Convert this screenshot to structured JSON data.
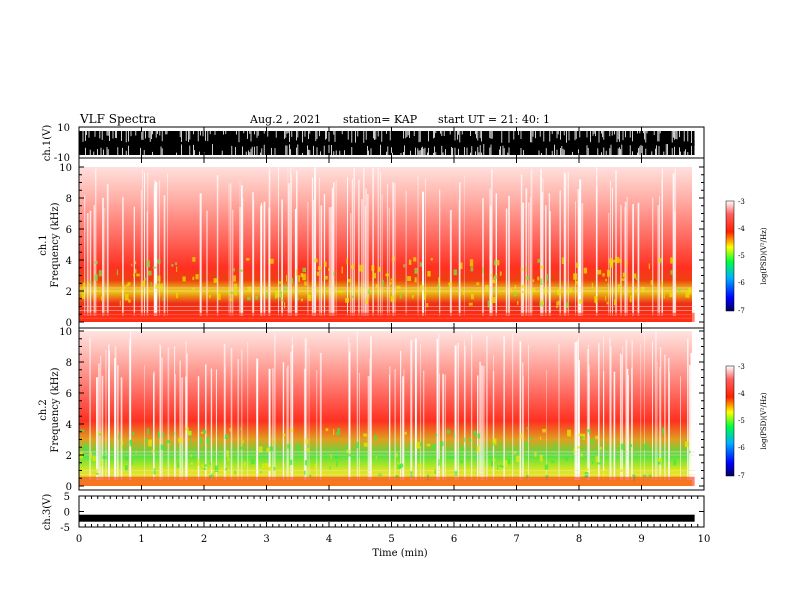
{
  "header": {
    "title": "VLF Spectra",
    "date": "Aug.2 , 2021",
    "station": "station= KAP",
    "start": "start UT = 21: 40: 1"
  },
  "chart_data": [
    {
      "type": "line",
      "name": "waveform-ch1",
      "ylabel": "ch.1(V)",
      "ylim": [
        -10,
        10
      ],
      "yticks": [
        "10",
        "-10"
      ],
      "xlim": [
        0,
        10
      ],
      "data_extent_min": 9.85,
      "description_values": {
        "amplitude_range": [
          -10,
          10
        ]
      }
    },
    {
      "type": "heatmap",
      "name": "spectrogram-ch1",
      "ylabel": "ch.1 Frequency (kHz)",
      "ylim": [
        0,
        10
      ],
      "yticks": [
        "0",
        "2",
        "4",
        "6",
        "8",
        "10"
      ],
      "xlim": [
        0,
        10
      ],
      "data_extent_min": 9.85,
      "colorbar": {
        "label": "log(PSD)(V²/Hz)",
        "range": [
          -7,
          -3
        ],
        "ticks": [
          "-3",
          "-4",
          "-5",
          "-6",
          "-7"
        ]
      }
    },
    {
      "type": "heatmap",
      "name": "spectrogram-ch2",
      "ylabel": "ch.2 Frequency (kHz)",
      "ylim": [
        0,
        10
      ],
      "yticks": [
        "0",
        "2",
        "4",
        "6",
        "8",
        "10"
      ],
      "xlim": [
        0,
        10
      ],
      "data_extent_min": 9.85,
      "colorbar": {
        "label": "log(PSD)(V²/Hz)",
        "range": [
          -7,
          -3
        ],
        "ticks": [
          "-3",
          "-4",
          "-5",
          "-6",
          "-7"
        ]
      }
    },
    {
      "type": "line",
      "name": "waveform-ch3",
      "ylabel": "ch.3(V)",
      "ylim": [
        -5,
        5
      ],
      "yticks": [
        "5",
        "0",
        "-5"
      ],
      "xlim": [
        0,
        10
      ],
      "baseline": -2,
      "data_extent_min": 9.85
    }
  ],
  "xaxis": {
    "label": "Time (min)",
    "ticks": [
      "0",
      "1",
      "2",
      "3",
      "4",
      "5",
      "6",
      "7",
      "8",
      "9",
      "10"
    ]
  },
  "labels": {
    "ch1_volt": "ch.1(V)",
    "ch1_freq_top": "ch.1",
    "ch1_freq_bottom": "Frequency (kHz)",
    "ch2_freq_top": "ch.2",
    "ch2_freq_bottom": "Frequency (kHz)",
    "ch3_volt": "ch.3(V)",
    "cb_label": "log(PSD)(V²/Hz)"
  },
  "colors": {
    "cb_stops": [
      "#000080",
      "#0000ff",
      "#00a0ff",
      "#00ff00",
      "#ffff00",
      "#ff0000",
      "#ffffff"
    ],
    "spec_red": "#ff2a1a",
    "spec_yellow": "#e8e800",
    "spec_green": "#40e840"
  }
}
